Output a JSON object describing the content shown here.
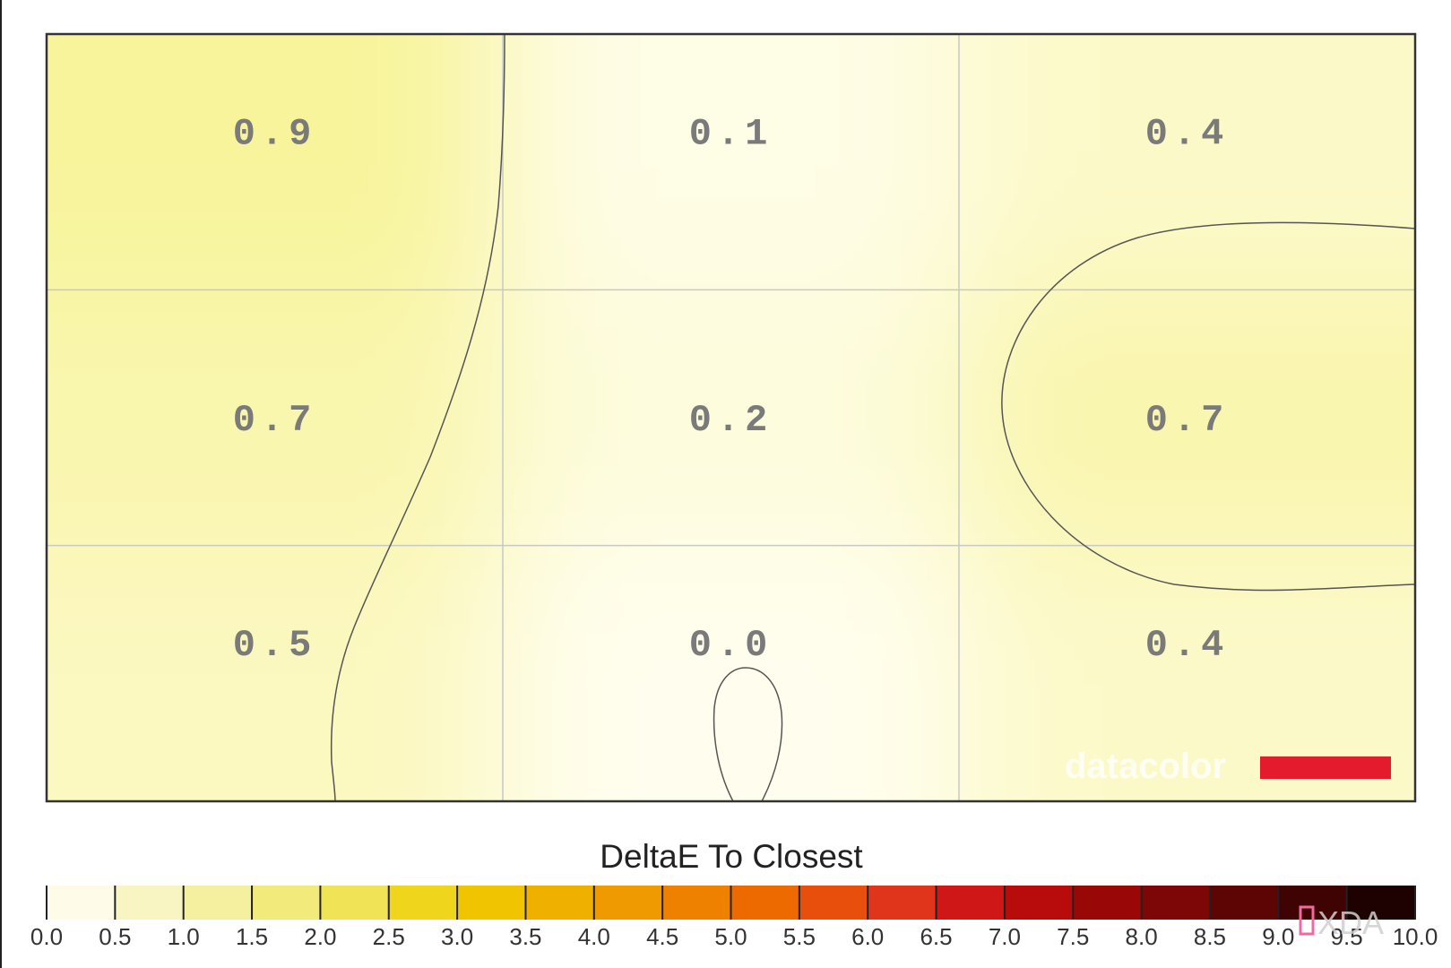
{
  "chart_data": {
    "type": "heatmap",
    "grid_rows": 3,
    "grid_cols": 3,
    "cells": [
      [
        0.9,
        0.1,
        0.4
      ],
      [
        0.7,
        0.2,
        0.7
      ],
      [
        0.5,
        0.0,
        0.4
      ]
    ],
    "cell_labels": [
      [
        "0.9",
        "0.1",
        "0.4"
      ],
      [
        "0.7",
        "0.2",
        "0.7"
      ],
      [
        "0.5",
        "0.0",
        "0.4"
      ]
    ],
    "colorbar": {
      "title": "DeltaE To Closest",
      "min": 0.0,
      "max": 10.0,
      "ticks": [
        "0.0",
        "0.5",
        "1.0",
        "1.5",
        "2.0",
        "2.5",
        "3.0",
        "3.5",
        "4.0",
        "4.5",
        "5.0",
        "5.5",
        "6.0",
        "6.5",
        "7.0",
        "7.5",
        "8.0",
        "8.5",
        "9.0",
        "9.5",
        "10.0"
      ],
      "segment_colors": [
        "#fefce8",
        "#f8f5c3",
        "#f4f09f",
        "#f3ea7c",
        "#f1e356",
        "#efd51c",
        "#f0c500",
        "#efb000",
        "#ef9a00",
        "#ee8200",
        "#ec6a00",
        "#e94f0c",
        "#e0351a",
        "#cf1717",
        "#b80c0c",
        "#9a0707",
        "#7d0606",
        "#5d0404",
        "#3f0303",
        "#1e0101"
      ]
    },
    "contour_levels": [
      0.5
    ],
    "watermark": {
      "brand_text": "datacolor",
      "brand_color": "#e31b2d",
      "corner_logo_text": "XDA"
    }
  }
}
